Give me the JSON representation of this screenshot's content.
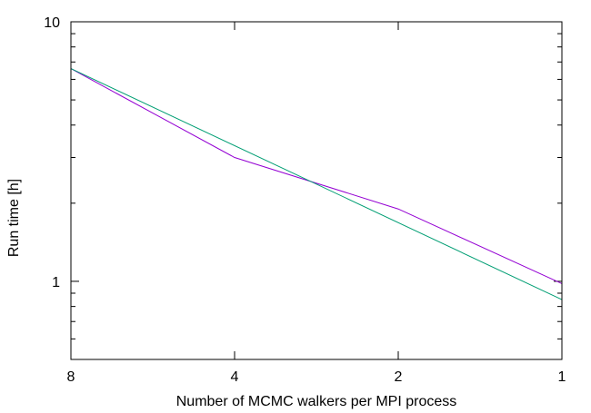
{
  "chart_data": {
    "type": "line",
    "title": "",
    "xlabel": "Number of MCMC walkers per MPI process",
    "ylabel": "Run time [h]",
    "x_scale": "log",
    "x_reversed": true,
    "y_scale": "log",
    "xlim": [
      8,
      1
    ],
    "ylim": [
      0.5,
      10
    ],
    "x_ticks": [
      {
        "value": 8,
        "label": "8"
      },
      {
        "value": 4,
        "label": "4"
      },
      {
        "value": 2,
        "label": "2"
      },
      {
        "value": 1,
        "label": "1"
      }
    ],
    "y_ticks": [
      {
        "value": 10,
        "label": "10"
      },
      {
        "value": 1,
        "label": "1"
      }
    ],
    "grid": false,
    "legend": "none",
    "series": [
      {
        "color": "#9400d3",
        "x": [
          8,
          4,
          2,
          1
        ],
        "y": [
          6.6,
          3.0,
          1.9,
          0.98
        ]
      },
      {
        "color": "#009e73",
        "x": [
          8,
          1
        ],
        "y": [
          6.6,
          0.85
        ]
      }
    ]
  }
}
